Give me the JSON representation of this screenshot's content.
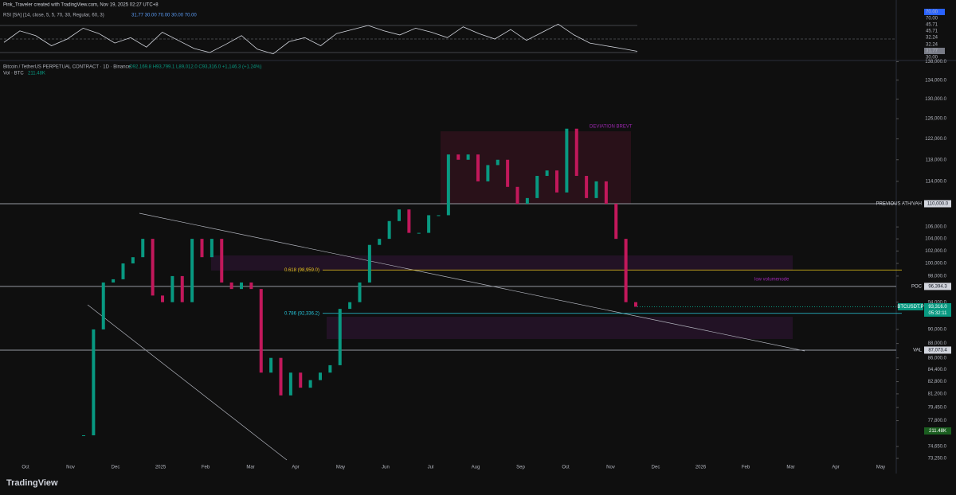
{
  "header": {
    "credit": "Pink_Traveler created with TradingView.com, Nov 19, 2025 02:27 UTC+8",
    "rsi_legend": "RSI [SA] (14, close, 5, 5, 70, 30, Regular, 60, 3)",
    "rsi_values": "31.77  30.00  70.00  30.00  70.00",
    "symbol": "Bitcoin / TetherUS PERPETUAL CONTRACT · 1D · Binance",
    "ohlc": "O92,169.8 H93,799.1 L89,012.0 C93,316.0 +1,146.3 (+1.24%)",
    "volume": "Vol · BTC",
    "volume_value": "211.48K"
  },
  "rsi_axis": [
    "70.00",
    "70.00",
    "45.71",
    "45.71",
    "32.24",
    "32.24",
    "31.77",
    "30.00"
  ],
  "price_axis": [
    {
      "value": 138000,
      "label": "138,000.0"
    },
    {
      "value": 134000,
      "label": "134,000.0"
    },
    {
      "value": 130000,
      "label": "130,000.0"
    },
    {
      "value": 126000,
      "label": "126,000.0"
    },
    {
      "value": 122000,
      "label": "122,000.0"
    },
    {
      "value": 118000,
      "label": "118,000.0"
    },
    {
      "value": 114000,
      "label": "114,000.0"
    },
    {
      "value": 106000,
      "label": "106,000.0"
    },
    {
      "value": 104000,
      "label": "104,000.0"
    },
    {
      "value": 102000,
      "label": "102,000.0"
    },
    {
      "value": 100000,
      "label": "100,000.0"
    },
    {
      "value": 98000,
      "label": "98,000.0"
    },
    {
      "value": 94000,
      "label": "94,000.0"
    },
    {
      "value": 90000,
      "label": "90,000.0"
    },
    {
      "value": 88000,
      "label": "88,000.0"
    },
    {
      "value": 86000,
      "label": "86,000.0"
    },
    {
      "value": 84400,
      "label": "84,400.0"
    },
    {
      "value": 82800,
      "label": "82,800.0"
    },
    {
      "value": 81200,
      "label": "81,200.0"
    },
    {
      "value": 79450,
      "label": "79,450.0"
    },
    {
      "value": 77800,
      "label": "77,800.0"
    },
    {
      "value": 74650,
      "label": "74,650.0"
    },
    {
      "value": 73250,
      "label": "73,250.0"
    }
  ],
  "time_axis": [
    "Oct",
    "Nov",
    "Dec",
    "2025",
    "Feb",
    "Mar",
    "Apr",
    "May",
    "Jun",
    "Jul",
    "Aug",
    "Sep",
    "Oct",
    "Nov",
    "Dec",
    "2026",
    "Feb",
    "Mar",
    "Apr",
    "May"
  ],
  "levels": [
    {
      "name": "PREVIOUS ATH/VAH",
      "value": 110000,
      "label": "110,000.0",
      "color": "#9598a1"
    },
    {
      "name": "POC",
      "value": 96394.3,
      "label": "96,394.3",
      "color": "#9598a1"
    },
    {
      "name": "VAL",
      "value": 87073.4,
      "label": "87,073.4",
      "color": "#9598a1"
    }
  ],
  "fibs": [
    {
      "label": "0.618 (98,959.0)",
      "value": 98959,
      "color": "#e6c619"
    },
    {
      "label": "0.786 (92,336.2)",
      "value": 92336.2,
      "color": "#26c6da"
    }
  ],
  "annotations": {
    "deviation": "DEVIATION BREVT",
    "lvn": "low volumenode"
  },
  "current": {
    "symbol": "BTCUSDT.P",
    "value": 93316,
    "label": "93,316.0",
    "countdown": "05:32:11"
  },
  "candles": [
    76000,
    90000,
    97000,
    97500,
    100000,
    101000,
    104000,
    95000,
    94000,
    98000,
    94000,
    104000,
    101000,
    104000,
    97000,
    96000,
    97000,
    96000,
    84000,
    86000,
    81000,
    84000,
    82000,
    83000,
    84000,
    85000,
    93000,
    94000,
    97000,
    103000,
    104000,
    107000,
    109000,
    105000,
    105000,
    108000,
    108000,
    119000,
    118000,
    119000,
    114000,
    117000,
    118000,
    113000,
    110000,
    111000,
    115000,
    116000,
    112000,
    124000,
    115000,
    111000,
    114000,
    110000,
    104000,
    94000,
    93316
  ],
  "rsi": [
    45,
    62,
    55,
    40,
    50,
    66,
    58,
    44,
    52,
    38,
    60,
    48,
    36,
    30,
    42,
    55,
    35,
    28,
    46,
    52,
    40,
    58,
    64,
    70,
    62,
    56,
    66,
    60,
    52,
    68,
    58,
    50,
    64,
    48,
    60,
    72,
    56,
    44,
    40,
    36,
    31.77
  ],
  "footer": "TradingView"
}
